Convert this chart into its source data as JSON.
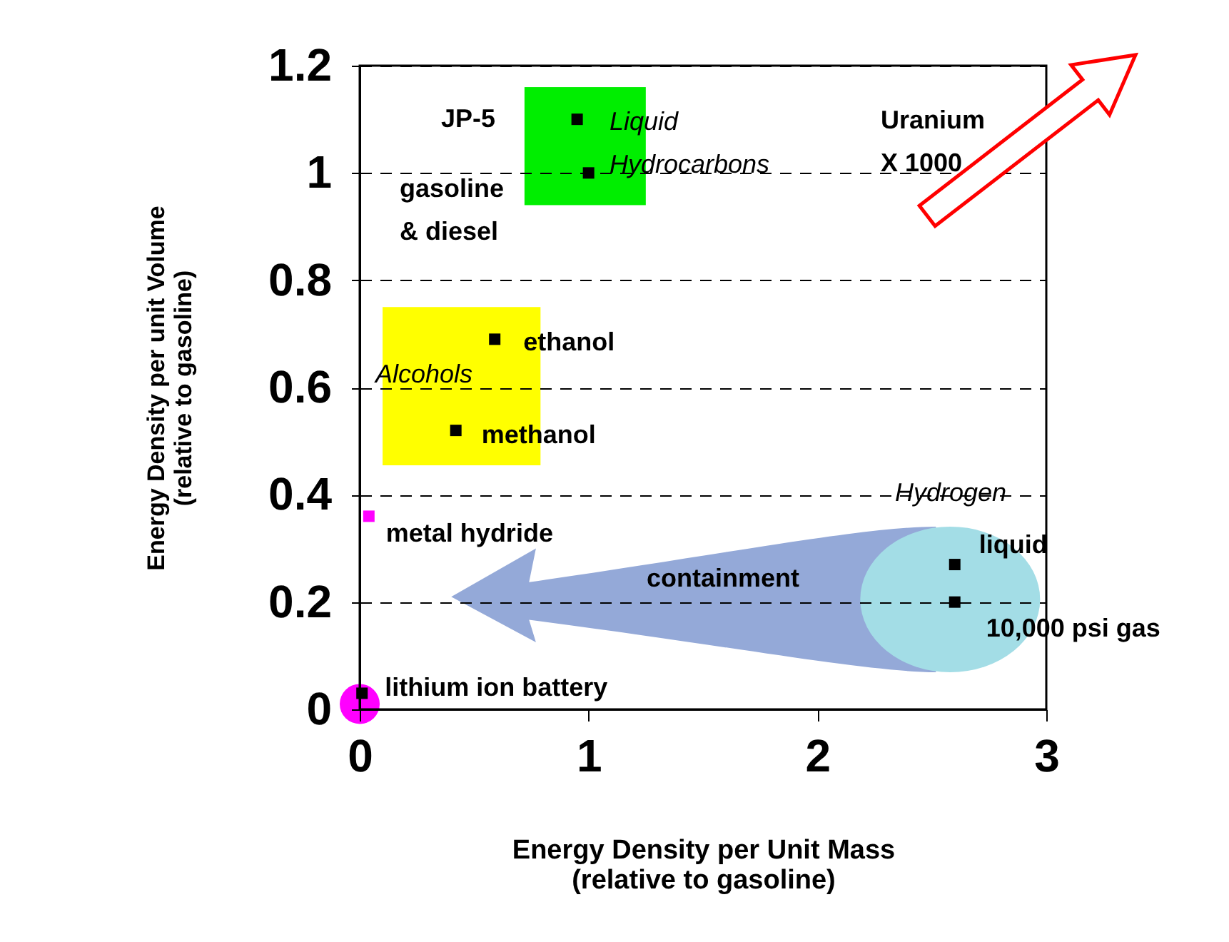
{
  "chart_data": {
    "type": "scatter",
    "xlabel": "Energy Density per Unit Mass\n(relative to gasoline)",
    "ylabel": "Energy Density per unit Volume\n(relative to gasoline)",
    "x": [
      0.95,
      1.0,
      0.59,
      0.42,
      0.04,
      0.01,
      2.6,
      2.6
    ],
    "values": [
      1.1,
      1.0,
      0.69,
      0.52,
      0.36,
      0.03,
      0.27,
      0.2
    ],
    "colors": [
      "#000000",
      "#000000",
      "#000000",
      "#000000",
      "#ff00ff",
      "#000000",
      "#000000",
      "#000000"
    ],
    "marker": "square",
    "xlim": [
      0,
      3
    ],
    "xticks": [
      0,
      1,
      2,
      3
    ],
    "ylim": [
      0,
      1.2
    ],
    "yticks": [
      0,
      0.2,
      0.4,
      0.6,
      0.8,
      1,
      1.2
    ],
    "grid": "y",
    "annotations": [
      "JP-5",
      "gasoline\n& diesel",
      "Liquid\nHydrocarbons",
      "Uranium\nX 1000",
      {
        "text": "ethanol",
        "x": 0.59,
        "y": 0.69
      },
      "Alcohols",
      {
        "text": "methanol",
        "x": 0.42,
        "y": 0.52
      },
      {
        "text": "metal hydride",
        "x": 0.04,
        "y": 0.36
      },
      "Hydrogen",
      {
        "text": "liquid",
        "x": 2.6,
        "y": 0.27
      },
      "containment",
      {
        "text": "10,000 psi gas",
        "x": 2.6,
        "y": 0.2
      },
      {
        "text": "lithium ion battery",
        "x": 0.01,
        "y": 0.03
      }
    ]
  }
}
